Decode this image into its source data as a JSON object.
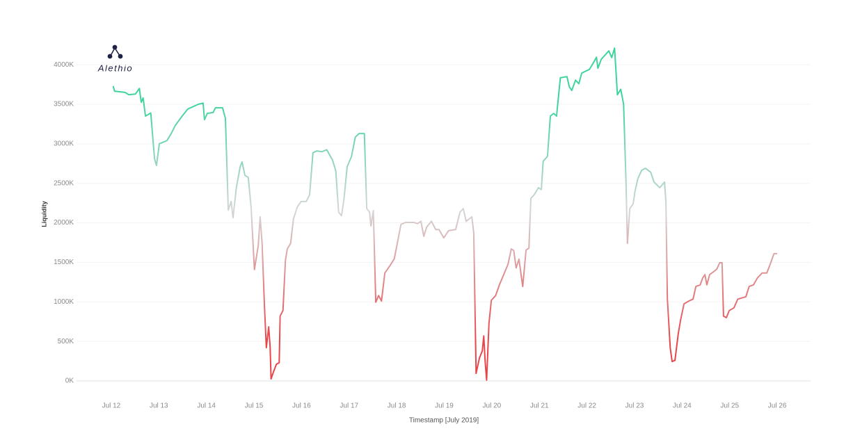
{
  "logo": "Alethio",
  "chart_data": {
    "type": "line",
    "x_label": "Timestamp [July 2019]",
    "y_label": "Liquidity",
    "xlim": [
      11.27,
      26.7
    ],
    "xticks": [
      {
        "value": 12,
        "label": "Jul 12"
      },
      {
        "value": 13,
        "label": "Jul 13"
      },
      {
        "value": 14,
        "label": "Jul 14"
      },
      {
        "value": 15,
        "label": "Jul 15"
      },
      {
        "value": 16,
        "label": "Jul 16"
      },
      {
        "value": 17,
        "label": "Jul 17"
      },
      {
        "value": 18,
        "label": "Jul 18"
      },
      {
        "value": 19,
        "label": "Jul 19"
      },
      {
        "value": 20,
        "label": "Jul 20"
      },
      {
        "value": 21,
        "label": "Jul 21"
      },
      {
        "value": 22,
        "label": "Jul 22"
      },
      {
        "value": 23,
        "label": "Jul 23"
      },
      {
        "value": 24,
        "label": "Jul 24"
      },
      {
        "value": 25,
        "label": "Jul 25"
      },
      {
        "value": 26,
        "label": "Jul 26"
      }
    ],
    "ylim": [
      0,
      4300
    ],
    "yticks": [
      {
        "value": 0,
        "label": "0K"
      },
      {
        "value": 500,
        "label": "500K"
      },
      {
        "value": 1000,
        "label": "1000K"
      },
      {
        "value": 1500,
        "label": "1500K"
      },
      {
        "value": 2000,
        "label": "2000K"
      },
      {
        "value": 2500,
        "label": "2500K"
      },
      {
        "value": 3000,
        "label": "3000K"
      },
      {
        "value": 3500,
        "label": "3500K"
      },
      {
        "value": 4000,
        "label": "4000K"
      }
    ],
    "grid": true,
    "gradient_colors": [
      "#e8464a",
      "#d6d6d6",
      "#3ed49c"
    ],
    "x": [
      12.04,
      12.07,
      12.29,
      12.37,
      12.51,
      12.59,
      12.63,
      12.67,
      12.72,
      12.83,
      12.91,
      12.95,
      13.01,
      13.17,
      13.26,
      13.35,
      13.49,
      13.61,
      13.83,
      13.93,
      13.96,
      14.02,
      14.14,
      14.19,
      14.34,
      14.4,
      14.46,
      14.52,
      14.56,
      14.63,
      14.71,
      14.75,
      14.81,
      14.88,
      14.94,
      15.01,
      15.09,
      15.13,
      15.17,
      15.22,
      15.26,
      15.31,
      15.34,
      15.36,
      15.41,
      15.47,
      15.53,
      15.55,
      15.61,
      15.66,
      15.7,
      15.77,
      15.83,
      15.91,
      15.99,
      16.1,
      16.17,
      16.24,
      16.32,
      16.43,
      16.53,
      16.65,
      16.72,
      16.78,
      16.84,
      16.89,
      16.96,
      17.05,
      17.13,
      17.21,
      17.32,
      17.37,
      17.43,
      17.46,
      17.51,
      17.56,
      17.62,
      17.68,
      17.75,
      17.85,
      17.95,
      18.09,
      18.19,
      18.36,
      18.44,
      18.51,
      18.57,
      18.63,
      18.73,
      18.82,
      18.89,
      18.99,
      19.09,
      19.24,
      19.33,
      19.4,
      19.46,
      19.58,
      19.62,
      19.67,
      19.74,
      19.8,
      19.83,
      19.86,
      19.89,
      19.94,
      19.99,
      20.08,
      20.16,
      20.25,
      20.34,
      20.41,
      20.46,
      20.51,
      20.57,
      20.65,
      20.72,
      20.78,
      20.82,
      20.89,
      20.98,
      21.04,
      21.08,
      21.17,
      21.23,
      21.3,
      21.36,
      21.44,
      21.58,
      21.63,
      21.68,
      21.76,
      21.83,
      21.89,
      21.98,
      22.05,
      22.12,
      22.2,
      22.23,
      22.3,
      22.37,
      22.46,
      22.52,
      22.58,
      22.64,
      22.71,
      22.77,
      22.82,
      22.85,
      22.9,
      22.97,
      23.01,
      23.07,
      23.15,
      23.23,
      23.34,
      23.41,
      23.53,
      23.63,
      23.66,
      23.69,
      23.75,
      23.79,
      23.85,
      23.92,
      23.97,
      24.04,
      24.14,
      24.23,
      24.29,
      24.38,
      24.43,
      24.48,
      24.52,
      24.58,
      24.67,
      24.73,
      24.79,
      24.84,
      24.87,
      24.93,
      24.99,
      25.09,
      25.17,
      25.34,
      25.41,
      25.5,
      25.58,
      25.68,
      25.78,
      25.85,
      25.93,
      26.0
    ],
    "values": [
      3730,
      3665,
      3650,
      3620,
      3630,
      3700,
      3525,
      3580,
      3350,
      3390,
      2810,
      2725,
      3000,
      3040,
      3130,
      3235,
      3350,
      3440,
      3500,
      3515,
      3305,
      3385,
      3395,
      3455,
      3455,
      3320,
      2160,
      2270,
      2065,
      2445,
      2710,
      2770,
      2600,
      2575,
      2200,
      1410,
      1715,
      2075,
      1740,
      950,
      420,
      685,
      420,
      25,
      115,
      210,
      230,
      820,
      890,
      1520,
      1670,
      1740,
      2050,
      2200,
      2270,
      2270,
      2355,
      2885,
      2910,
      2900,
      2925,
      2795,
      2660,
      2135,
      2090,
      2295,
      2710,
      2840,
      3085,
      3130,
      3130,
      2180,
      2135,
      1960,
      2155,
      995,
      1080,
      1010,
      1365,
      1450,
      1545,
      1980,
      2005,
      2005,
      1990,
      2020,
      1830,
      1945,
      2020,
      1915,
      1915,
      1810,
      1900,
      1915,
      2135,
      2180,
      2020,
      2075,
      1870,
      95,
      290,
      380,
      570,
      245,
      10,
      730,
      1020,
      1080,
      1215,
      1345,
      1475,
      1670,
      1650,
      1430,
      1540,
      1195,
      1655,
      1680,
      2310,
      2355,
      2445,
      2420,
      2780,
      2840,
      3350,
      3385,
      3350,
      3835,
      3850,
      3720,
      3675,
      3805,
      3760,
      3895,
      3920,
      3940,
      4010,
      4095,
      3955,
      4070,
      4115,
      4175,
      4090,
      4210,
      3620,
      3690,
      3500,
      2530,
      1740,
      2180,
      2240,
      2400,
      2560,
      2665,
      2690,
      2640,
      2515,
      2445,
      2515,
      2270,
      1040,
      420,
      245,
      260,
      600,
      775,
      975,
      1010,
      1035,
      1195,
      1215,
      1300,
      1345,
      1215,
      1345,
      1385,
      1415,
      1495,
      1495,
      820,
      800,
      890,
      925,
      1035,
      1065,
      1195,
      1215,
      1300,
      1365,
      1365,
      1475,
      1610,
      1610
    ]
  }
}
